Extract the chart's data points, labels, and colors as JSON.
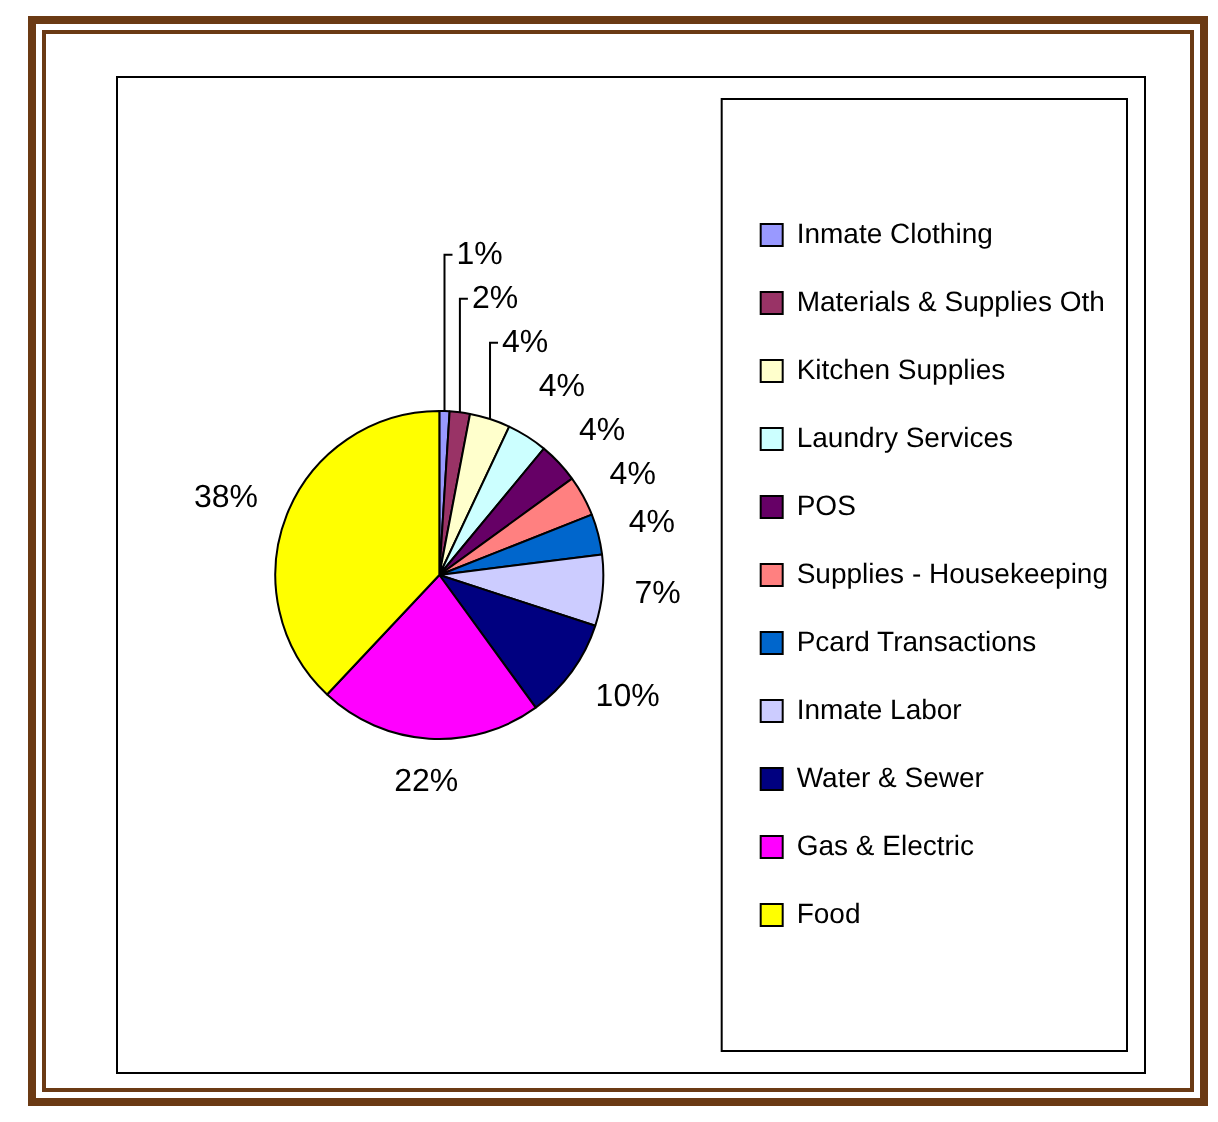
{
  "chart_data": {
    "type": "pie",
    "categories": [
      "Inmate Clothing",
      "Materials & Supplies Oth",
      "Kitchen Supplies",
      "Laundry Services",
      "POS",
      "Supplies - Housekeeping",
      "Pcard Transactions",
      "Inmate Labor",
      "Water & Sewer",
      "Gas & Electric",
      "Food"
    ],
    "values": [
      1,
      2,
      4,
      4,
      4,
      4,
      4,
      7,
      10,
      22,
      38
    ],
    "colors": [
      "#9999ff",
      "#993366",
      "#ffffcc",
      "#ccffff",
      "#660066",
      "#ff8080",
      "#0066cc",
      "#ccccff",
      "#000080",
      "#ff00ff",
      "#ffff00"
    ],
    "value_labels": [
      "1%",
      "2%",
      "4%",
      "4%",
      "4%",
      "4%",
      "4%",
      "7%",
      "10%",
      "22%",
      "38%"
    ],
    "legend": "right"
  }
}
